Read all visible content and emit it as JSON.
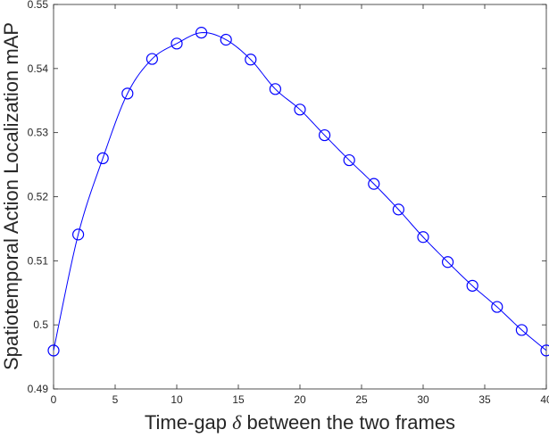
{
  "chart_data": {
    "type": "line",
    "title": "",
    "xlabel_prefix": "Time-gap ",
    "xlabel_symbol": "δ",
    "xlabel_suffix": " between the two frames",
    "ylabel": "Spatiotemporal Action Localization mAP",
    "xlim": [
      0,
      40
    ],
    "ylim": [
      0.49,
      0.55
    ],
    "xticks": [
      0,
      5,
      10,
      15,
      20,
      25,
      30,
      35,
      40
    ],
    "yticks": [
      0.49,
      0.5,
      0.51,
      0.52,
      0.53,
      0.54,
      0.55
    ],
    "ytick_labels": [
      "0.49",
      "0.5",
      "0.51",
      "0.52",
      "0.53",
      "0.54",
      "0.55"
    ],
    "grid": false,
    "legend": "none",
    "line_color": "#0000ff",
    "marker": "circle",
    "series": [
      {
        "x": [
          0,
          2,
          4,
          6,
          8,
          10,
          12,
          14,
          16,
          18,
          20,
          22,
          24,
          26,
          28,
          30,
          32,
          34,
          36,
          38,
          40
        ],
        "y": [
          0.496,
          0.5141,
          0.526,
          0.5361,
          0.5415,
          0.5439,
          0.5456,
          0.5445,
          0.5414,
          0.5368,
          0.5336,
          0.5296,
          0.5257,
          0.522,
          0.518,
          0.5137,
          0.5098,
          0.5061,
          0.5028,
          0.4992,
          0.496
        ]
      }
    ]
  }
}
